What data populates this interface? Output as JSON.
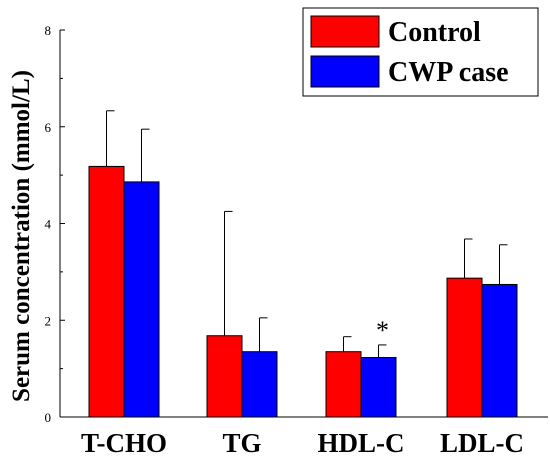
{
  "chart_data": {
    "type": "bar",
    "title": "",
    "xlabel": "",
    "ylabel": "Serum concentration (mmol/L)",
    "ylim": [
      0,
      8
    ],
    "yticks": [
      0,
      2,
      4,
      6,
      8
    ],
    "categories": [
      "T-CHO",
      "TG",
      "HDL-C",
      "LDL-C"
    ],
    "series": [
      {
        "name": "Control",
        "color": "#ff0000",
        "values": [
          5.18,
          1.68,
          1.35,
          2.87
        ],
        "error_upper": [
          6.33,
          4.25,
          1.66,
          3.68
        ]
      },
      {
        "name": "CWP case",
        "color": "#0000ff",
        "values": [
          4.86,
          1.35,
          1.23,
          2.74
        ],
        "error_upper": [
          5.95,
          2.05,
          1.49,
          3.56
        ]
      }
    ],
    "annotations": [
      {
        "text": "*",
        "category": "HDL-C",
        "series": "CWP case"
      }
    ],
    "legend": {
      "placement": "top-right",
      "entries": [
        "Control",
        "CWP case"
      ]
    },
    "grid": false
  }
}
